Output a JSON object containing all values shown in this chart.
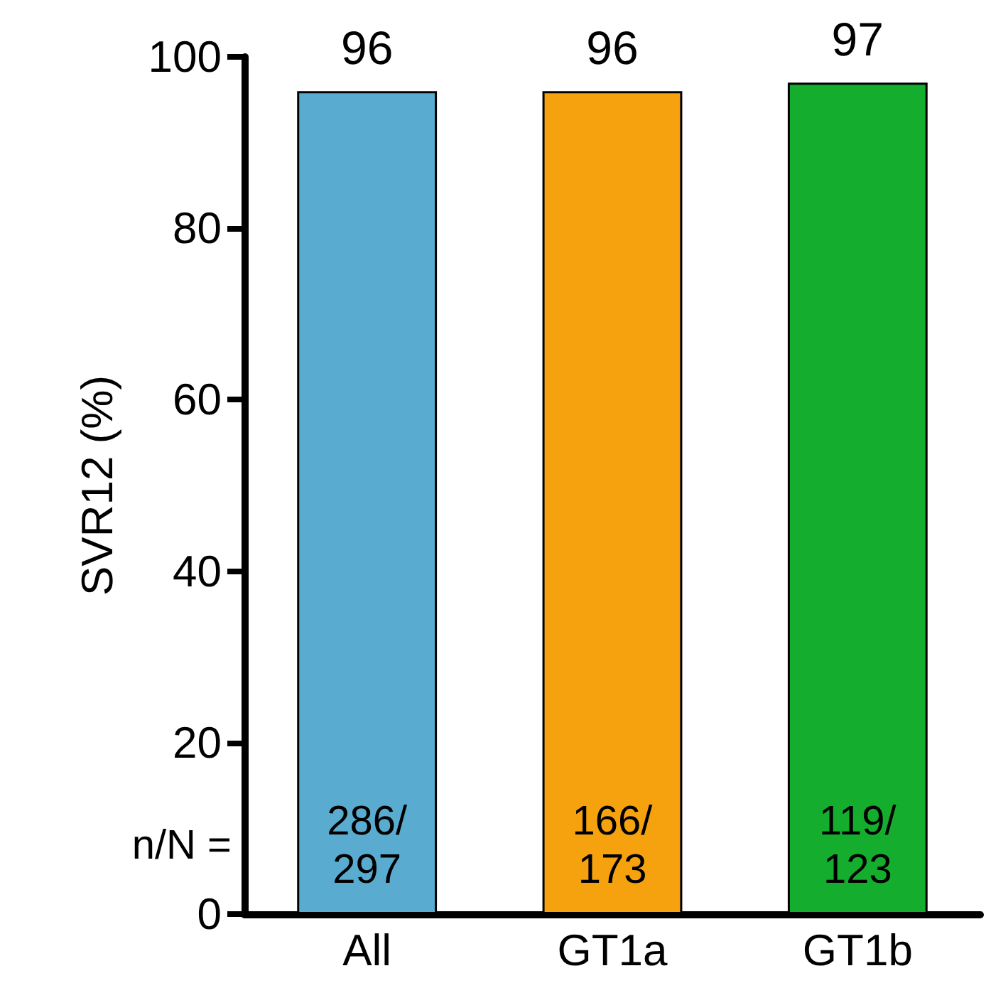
{
  "chart_data": {
    "type": "bar",
    "ylabel": "SVR12 (%)",
    "categories": [
      "All",
      "GT1a",
      "GT1b"
    ],
    "values": [
      96,
      96,
      97
    ],
    "colors": [
      "#5aabd0",
      "#f6a20f",
      "#14ad2e"
    ],
    "ylim": [
      0,
      100
    ],
    "yticks": [
      0,
      20,
      40,
      60,
      80,
      100
    ],
    "data_labels": true,
    "grid": false,
    "annotations": [
      "n/N =",
      "286/\n297",
      "166/\n173",
      "119/\n123"
    ]
  }
}
